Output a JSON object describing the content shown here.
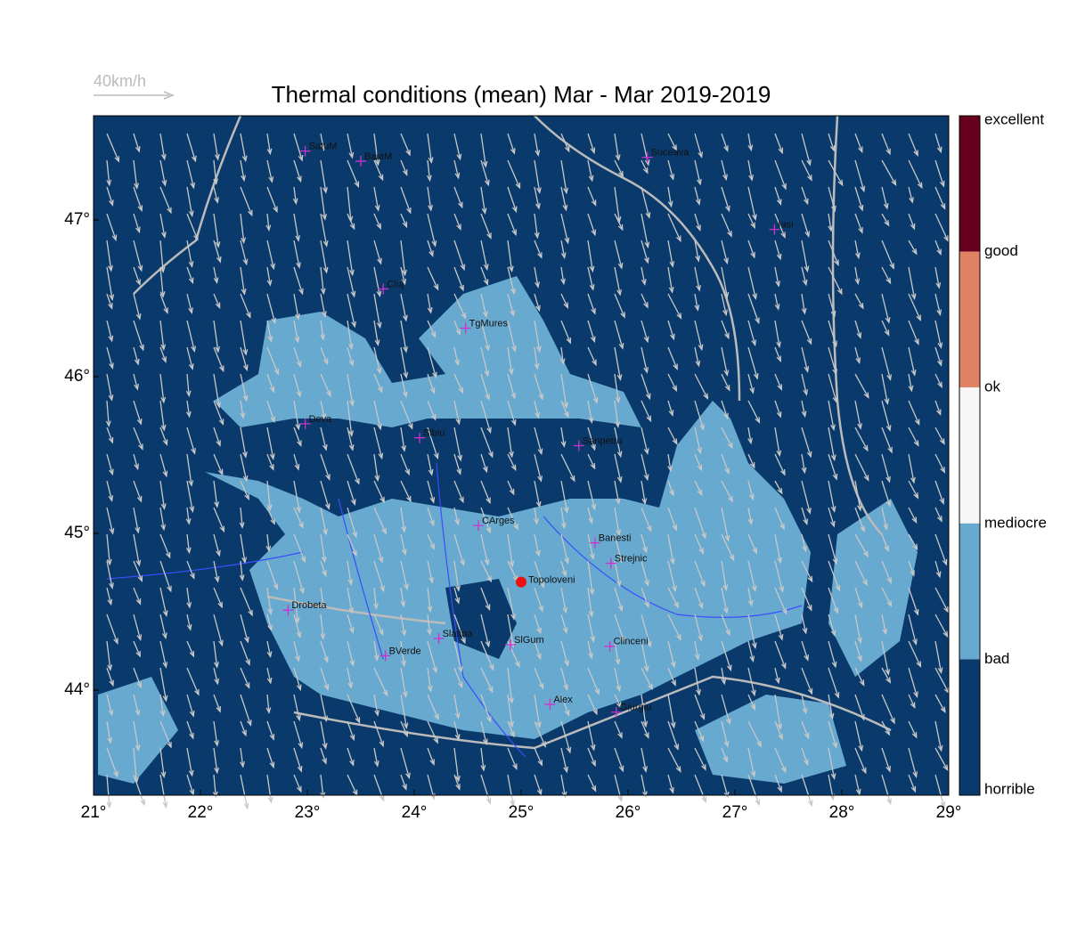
{
  "title": "Thermal conditions (mean) Mar - Mar  2019-2019",
  "wind_legend": "40km/h",
  "map": {
    "xlim": [
      21,
      29
    ],
    "ylim": [
      43.33,
      47.665
    ],
    "xticks": [
      {
        "value": 21,
        "label": "21°"
      },
      {
        "value": 22,
        "label": "22°"
      },
      {
        "value": 23,
        "label": "23°"
      },
      {
        "value": 24,
        "label": "24°"
      },
      {
        "value": 25,
        "label": "25°"
      },
      {
        "value": 26,
        "label": "26°"
      },
      {
        "value": 27,
        "label": "27°"
      },
      {
        "value": 28,
        "label": "28°"
      },
      {
        "value": 29,
        "label": "29°"
      }
    ],
    "yticks": [
      {
        "value": 44,
        "label": "44°"
      },
      {
        "value": 45,
        "label": "45°"
      },
      {
        "value": 46,
        "label": "46°"
      },
      {
        "value": 47,
        "label": "47°"
      }
    ]
  },
  "cities": [
    {
      "name": "SatuM",
      "lon": 22.98,
      "lat": 47.44
    },
    {
      "name": "BaiaM",
      "lon": 23.5,
      "lat": 47.375
    },
    {
      "name": "Suceava",
      "lon": 26.18,
      "lat": 47.4
    },
    {
      "name": "Iasi",
      "lon": 27.37,
      "lat": 46.94
    },
    {
      "name": "Cluj",
      "lon": 23.71,
      "lat": 46.56
    },
    {
      "name": "TgMures",
      "lon": 24.48,
      "lat": 46.31
    },
    {
      "name": "Deva",
      "lon": 22.98,
      "lat": 45.7
    },
    {
      "name": "Sibiu",
      "lon": 24.05,
      "lat": 45.61
    },
    {
      "name": "Sanpetru",
      "lon": 25.54,
      "lat": 45.56
    },
    {
      "name": "CArges",
      "lon": 24.6,
      "lat": 45.05
    },
    {
      "name": "Banesti",
      "lon": 25.69,
      "lat": 44.94
    },
    {
      "name": "Strejnic",
      "lon": 25.84,
      "lat": 44.81
    },
    {
      "name": "Drobeta",
      "lon": 22.82,
      "lat": 44.51
    },
    {
      "name": "Slatina",
      "lon": 24.23,
      "lat": 44.33
    },
    {
      "name": "SlGum",
      "lon": 24.9,
      "lat": 44.29
    },
    {
      "name": "BVerde",
      "lon": 23.73,
      "lat": 44.22
    },
    {
      "name": "Clinceni",
      "lon": 25.83,
      "lat": 44.28
    },
    {
      "name": "Alex",
      "lon": 25.27,
      "lat": 43.91
    },
    {
      "name": "Giurgiu",
      "lon": 25.89,
      "lat": 43.86
    }
  ],
  "point": {
    "name": "Topoloveni",
    "lon": 25.0,
    "lat": 44.69,
    "color": "#ee1111"
  },
  "colorbar": {
    "labels": [
      "excellent",
      "good",
      "ok",
      "mediocre",
      "bad",
      "horrible"
    ],
    "colors": [
      "#67001f",
      "#e08264",
      "#f7f7f7",
      "#67a9cf",
      "#0a3a6b"
    ]
  }
}
